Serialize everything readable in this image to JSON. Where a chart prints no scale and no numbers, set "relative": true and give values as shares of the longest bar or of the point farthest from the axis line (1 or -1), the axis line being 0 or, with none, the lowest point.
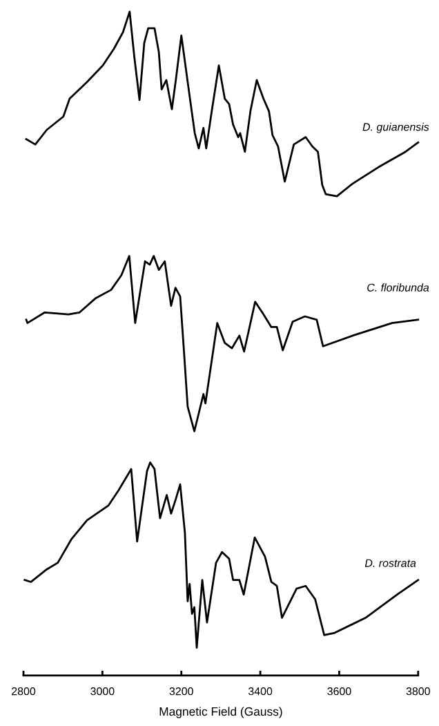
{
  "chart_data": {
    "type": "line",
    "relative": true,
    "xlim": [
      2800,
      3800
    ],
    "xticks": [
      2800,
      3000,
      3200,
      3400,
      3600,
      3800
    ],
    "xlabel": "Magnetic Field (Gauss)",
    "tick_labels": "x",
    "marker": "none",
    "line_style": "solid",
    "series": [
      {
        "name": "D. guianensis",
        "color": "#000000",
        "x": [
          2807,
          2830,
          2859,
          2901,
          2917,
          2961,
          3001,
          3029,
          3052,
          3069,
          3081,
          3094,
          3106,
          3116,
          3132,
          3143,
          3150,
          3162,
          3176,
          3186,
          3200,
          3223,
          3234,
          3244,
          3256,
          3263,
          3277,
          3295,
          3310,
          3321,
          3331,
          3344,
          3349,
          3361,
          3375,
          3391,
          3408,
          3422,
          3431,
          3445,
          3462,
          3485,
          3515,
          3532,
          3546,
          3557,
          3566,
          3594,
          3634,
          3700,
          3768,
          3800
        ],
        "values": [
          0.808,
          0.8,
          0.822,
          0.842,
          0.869,
          0.894,
          0.919,
          0.944,
          0.969,
          1.0,
          0.931,
          0.867,
          0.953,
          0.975,
          0.975,
          0.939,
          0.883,
          0.897,
          0.853,
          0.897,
          0.964,
          0.864,
          0.817,
          0.794,
          0.825,
          0.794,
          0.85,
          0.919,
          0.869,
          0.861,
          0.83,
          0.811,
          0.817,
          0.789,
          0.85,
          0.897,
          0.869,
          0.85,
          0.814,
          0.797,
          0.744,
          0.8,
          0.811,
          0.797,
          0.789,
          0.739,
          0.725,
          0.722,
          0.741,
          0.766,
          0.789,
          0.803
        ]
      },
      {
        "name": "C. floribunda",
        "color": "#000000",
        "x": [
          2807,
          2810,
          2854,
          2914,
          2942,
          2982,
          3022,
          3048,
          3068,
          3083,
          3108,
          3120,
          3130,
          3143,
          3158,
          3174,
          3185,
          3197,
          3207,
          3216,
          3233,
          3256,
          3261,
          3291,
          3310,
          3328,
          3347,
          3359,
          3387,
          3405,
          3428,
          3442,
          3457,
          3482,
          3513,
          3543,
          3559,
          3634,
          3734,
          3800
        ],
        "values": [
          0.536,
          0.531,
          0.547,
          0.544,
          0.547,
          0.568,
          0.581,
          0.603,
          0.632,
          0.531,
          0.624,
          0.619,
          0.632,
          0.611,
          0.624,
          0.557,
          0.584,
          0.571,
          0.485,
          0.405,
          0.368,
          0.424,
          0.41,
          0.531,
          0.501,
          0.493,
          0.512,
          0.488,
          0.563,
          0.547,
          0.525,
          0.525,
          0.49,
          0.533,
          0.541,
          0.536,
          0.496,
          0.512,
          0.531,
          0.536
        ]
      },
      {
        "name": "D. rostrata",
        "color": "#000000",
        "x": [
          2803,
          2819,
          2859,
          2887,
          2921,
          2961,
          3015,
          3041,
          3073,
          3088,
          3113,
          3121,
          3132,
          3146,
          3163,
          3174,
          3186,
          3197,
          3209,
          3216,
          3221,
          3227,
          3233,
          3239,
          3253,
          3265,
          3288,
          3303,
          3321,
          3331,
          3347,
          3358,
          3386,
          3412,
          3428,
          3442,
          3455,
          3492,
          3515,
          3539,
          3562,
          3587,
          3667,
          3747,
          3800
        ],
        "values": [
          0.144,
          0.141,
          0.16,
          0.17,
          0.205,
          0.234,
          0.256,
          0.279,
          0.311,
          0.202,
          0.308,
          0.321,
          0.311,
          0.237,
          0.272,
          0.244,
          0.266,
          0.288,
          0.215,
          0.112,
          0.138,
          0.093,
          0.103,
          0.042,
          0.144,
          0.08,
          0.17,
          0.186,
          0.176,
          0.144,
          0.144,
          0.122,
          0.208,
          0.179,
          0.141,
          0.135,
          0.087,
          0.131,
          0.135,
          0.115,
          0.061,
          0.064,
          0.087,
          0.122,
          0.144
        ]
      }
    ]
  }
}
